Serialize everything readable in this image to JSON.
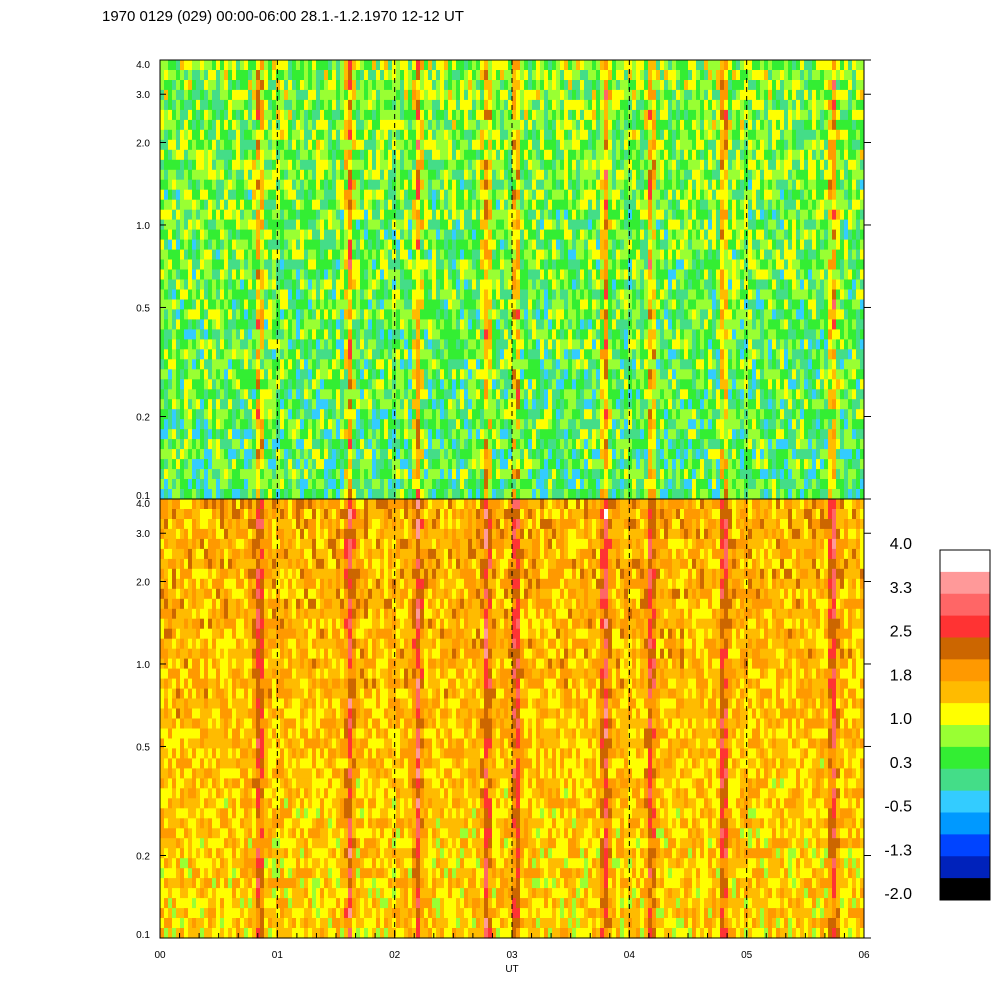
{
  "title": "1970 0129 (029) 00:00-06:00 28.1.-1.2.1970  12-12 UT",
  "chart_data": {
    "type": "heatmap",
    "title": "1970 0129 (029) 00:00-06:00 28.1.-1.2.1970  12-12 UT",
    "xlabel": "UT",
    "x_ticks": [
      "00",
      "01",
      "02",
      "03",
      "04",
      "05",
      "06"
    ],
    "xlim": [
      0,
      6
    ],
    "panels": [
      {
        "name": "",
        "ylabel": "",
        "y_scale": "log",
        "ylim": [
          0.1,
          4.0
        ],
        "y_ticks": [
          "0.1",
          "0.2",
          "0.5",
          "1.0",
          "2.0",
          "3.0",
          "4.0"
        ],
        "y_tick_values": [
          0.1,
          0.2,
          0.5,
          1.0,
          2.0,
          3.0,
          4.0
        ],
        "dominant_level": 0.3
      },
      {
        "name": "",
        "ylabel": "",
        "y_scale": "log",
        "ylim": [
          0.1,
          4.0
        ],
        "y_ticks": [
          "0.1",
          "0.2",
          "0.5",
          "1.0",
          "2.0",
          "3.0",
          "4.0"
        ],
        "y_tick_values": [
          0.1,
          0.2,
          0.5,
          1.0,
          2.0,
          3.0,
          4.0
        ],
        "dominant_level": 1.8
      }
    ],
    "hour_markers": [
      1,
      2,
      3,
      4,
      5
    ],
    "event_times": [
      0.83,
      1.6,
      2.18,
      2.77,
      3.02,
      3.78,
      4.17,
      4.79,
      5.72
    ],
    "colorbar": {
      "labels": [
        "4.0",
        "3.3",
        "2.5",
        "1.8",
        "1.0",
        "0.3",
        "-0.5",
        "-1.3",
        "-2.0"
      ],
      "label_values": [
        4.0,
        3.3,
        2.5,
        1.8,
        1.0,
        0.3,
        -0.5,
        -1.3,
        -2.0
      ],
      "colors": [
        "#ffffff",
        "#ff9999",
        "#ff6666",
        "#ff3333",
        "#cc6600",
        "#ff9900",
        "#ffbb00",
        "#ffff00",
        "#99ff33",
        "#33ee33",
        "#44dd88",
        "#33ccff",
        "#0099ff",
        "#0044ff",
        "#0022bb",
        "#000000"
      ]
    }
  }
}
